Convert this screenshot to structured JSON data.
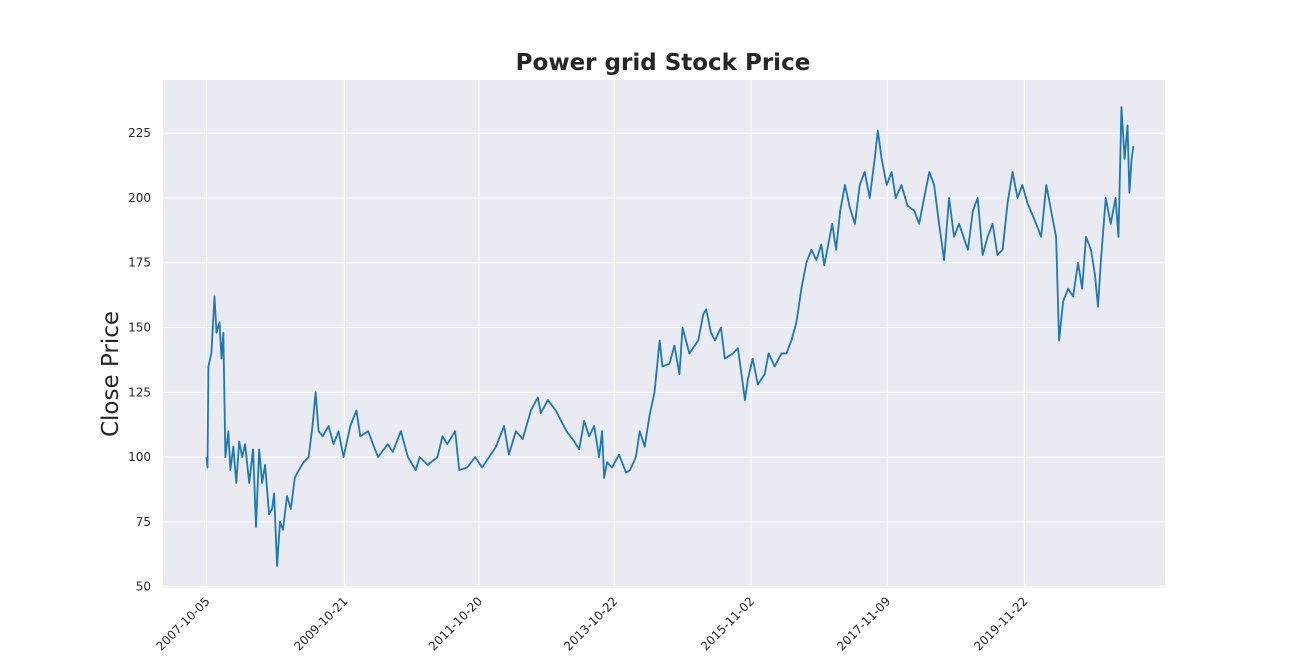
{
  "chart_data": {
    "type": "line",
    "title": "Power grid Stock Price",
    "y_label": "Close Price",
    "color": "#1f77b4",
    "grid": true,
    "x": [
      "2007-10-05",
      "2007-10-10",
      "2007-10-15",
      "2007-10-31",
      "2007-11-17",
      "2007-11-28",
      "2007-12-14",
      "2007-12-25",
      "2008-01-04",
      "2008-01-15",
      "2008-01-31",
      "2008-02-11",
      "2008-02-27",
      "2008-03-14",
      "2008-03-30",
      "2008-04-15",
      "2008-05-01",
      "2008-05-23",
      "2008-06-13",
      "2008-06-29",
      "2008-07-16",
      "2008-08-01",
      "2008-08-17",
      "2008-09-08",
      "2008-09-24",
      "2008-10-05",
      "2008-10-21",
      "2008-11-06",
      "2008-11-22",
      "2008-12-14",
      "2009-01-04",
      "2009-01-25",
      "2009-02-16",
      "2009-03-14",
      "2009-04-10",
      "2009-05-01",
      "2009-05-18",
      "2009-06-03",
      "2009-06-25",
      "2009-07-27",
      "2009-08-23",
      "2009-09-19",
      "2009-10-16",
      "2009-11-22",
      "2009-12-25",
      "2010-01-15",
      "2010-02-27",
      "2010-03-25",
      "2010-04-21",
      "2010-06-13",
      "2010-07-10",
      "2010-08-23",
      "2010-09-30",
      "2010-11-11",
      "2010-12-03",
      "2011-01-15",
      "2011-03-09",
      "2011-04-05",
      "2011-05-01",
      "2011-06-13",
      "2011-07-05",
      "2011-08-17",
      "2011-09-30",
      "2011-11-06",
      "2012-01-20",
      "2012-03-04",
      "2012-03-30",
      "2012-05-07",
      "2012-06-13",
      "2012-07-27",
      "2012-09-03",
      "2012-09-19",
      "2012-10-27",
      "2012-12-09",
      "2013-02-05",
      "2013-03-20",
      "2013-04-15",
      "2013-05-12",
      "2013-06-08",
      "2013-07-05",
      "2013-08-01",
      "2013-08-17",
      "2013-08-28",
      "2013-09-13",
      "2013-10-10",
      "2013-11-17",
      "2013-12-25",
      "2014-01-15",
      "2014-02-16",
      "2014-03-09",
      "2014-04-05",
      "2014-05-01",
      "2014-05-28",
      "2014-06-25",
      "2014-07-10",
      "2014-08-17",
      "2014-09-13",
      "2014-10-10",
      "2014-10-27",
      "2014-12-03",
      "2015-01-20",
      "2015-02-16",
      "2015-03-04",
      "2015-03-30",
      "2015-04-21",
      "2015-05-23",
      "2015-06-13",
      "2015-07-27",
      "2015-08-23",
      "2015-09-19",
      "2015-09-30",
      "2015-10-16",
      "2015-11-11",
      "2015-12-09",
      "2016-01-15",
      "2016-02-05",
      "2016-03-09",
      "2016-04-15",
      "2016-05-12",
      "2016-06-08",
      "2016-07-05",
      "2016-08-01",
      "2016-08-28",
      "2016-09-24",
      "2016-10-21",
      "2016-11-17",
      "2016-12-03",
      "2017-01-15",
      "2017-02-05",
      "2017-02-27",
      "2017-03-25",
      "2017-04-21",
      "2017-05-18",
      "2017-06-13",
      "2017-07-10",
      "2017-08-06",
      "2017-09-02",
      "2017-09-19",
      "2017-10-10",
      "2017-11-06",
      "2017-12-03",
      "2017-12-25",
      "2018-01-25",
      "2018-02-27",
      "2018-04-05",
      "2018-05-01",
      "2018-05-28",
      "2018-06-25",
      "2018-07-21",
      "2018-08-17",
      "2018-09-13",
      "2018-10-10",
      "2018-11-06",
      "2018-12-03",
      "2019-01-20",
      "2019-02-16",
      "2019-03-14",
      "2019-04-10",
      "2019-05-07",
      "2019-06-03",
      "2019-06-29",
      "2019-07-27",
      "2019-08-23",
      "2019-09-19",
      "2019-10-16",
      "2019-11-11",
      "2019-12-09",
      "2020-01-25",
      "2020-02-21",
      "2020-03-20",
      "2020-04-15",
      "2020-05-12",
      "2020-05-28",
      "2020-06-19",
      "2020-07-16",
      "2020-08-12",
      "2020-09-08",
      "2020-09-30",
      "2020-10-21",
      "2020-11-17",
      "2020-12-09",
      "2020-12-25",
      "2021-01-09",
      "2021-02-05",
      "2021-03-04",
      "2021-03-30",
      "2021-04-15",
      "2021-05-01",
      "2021-05-18",
      "2021-06-03",
      "2021-06-13",
      "2021-06-25",
      "2021-07-05"
    ],
    "values": [
      100,
      96,
      135,
      140,
      162,
      148,
      152,
      138,
      148,
      100,
      110,
      95,
      104,
      90,
      106,
      100,
      105,
      90,
      103,
      73,
      103,
      90,
      97,
      78,
      80,
      86,
      58,
      75,
      72,
      85,
      80,
      92,
      95,
      98,
      100,
      112,
      125,
      110,
      108,
      112,
      105,
      110,
      100,
      112,
      118,
      108,
      110,
      105,
      100,
      105,
      102,
      110,
      100,
      95,
      100,
      97,
      100,
      108,
      105,
      110,
      95,
      96,
      100,
      96,
      104,
      112,
      101,
      110,
      107,
      118,
      123,
      117,
      122,
      118,
      110,
      106,
      103,
      114,
      108,
      112,
      100,
      110,
      92,
      98,
      96,
      101,
      94,
      95,
      100,
      110,
      104,
      116,
      125,
      145,
      135,
      136,
      143,
      132,
      150,
      140,
      145,
      155,
      157,
      148,
      145,
      150,
      138,
      140,
      142,
      128,
      122,
      130,
      138,
      128,
      132,
      140,
      135,
      140,
      140,
      145,
      152,
      165,
      175,
      180,
      176,
      182,
      174,
      190,
      180,
      195,
      205,
      196,
      190,
      205,
      210,
      200,
      215,
      226,
      215,
      205,
      210,
      200,
      205,
      197,
      195,
      190,
      200,
      210,
      205,
      190,
      176,
      200,
      185,
      190,
      180,
      195,
      200,
      178,
      185,
      190,
      178,
      180,
      198,
      210,
      200,
      205,
      198,
      190,
      185,
      205,
      195,
      185,
      145,
      160,
      165,
      162,
      175,
      165,
      185,
      180,
      170,
      158,
      175,
      200,
      190,
      200,
      185,
      235,
      215,
      228,
      202,
      215,
      220
    ],
    "xlim": [
      "2007-02-11",
      "2021-12-23"
    ],
    "xticks": [
      "2007-10-05",
      "2009-10-21",
      "2011-10-20",
      "2013-10-22",
      "2015-11-02",
      "2017-11-09",
      "2019-11-22"
    ],
    "ylim": [
      49.5,
      245.5
    ],
    "yticks": [
      50,
      75,
      100,
      125,
      150,
      175,
      200,
      225
    ]
  }
}
